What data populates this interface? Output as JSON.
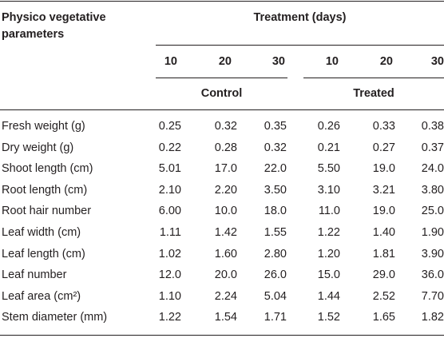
{
  "table": {
    "stub_header": "Physico vegetative parameters",
    "spanner": "Treatment (days)",
    "days": [
      "10",
      "20",
      "30",
      "10",
      "20",
      "30"
    ],
    "groups": [
      "Control",
      "Treated"
    ],
    "rows": [
      [
        "Fresh weight (g)",
        "0.25",
        "0.32",
        "0.35",
        "0.26",
        "0.33",
        "0.38"
      ],
      [
        "Dry weight (g)",
        "0.22",
        "0.28",
        "0.32",
        "0.21",
        "0.27",
        "0.37"
      ],
      [
        "Shoot length (cm)",
        "5.01",
        "17.0",
        "22.0",
        "5.50",
        "19.0",
        "24.0"
      ],
      [
        "Root length (cm)",
        "2.10",
        "2.20",
        "3.50",
        "3.10",
        "3.21",
        "3.80"
      ],
      [
        "Root hair number",
        "6.00",
        "10.0",
        "18.0",
        "11.0",
        "19.0",
        "25.0"
      ],
      [
        "Leaf width (cm)",
        "1.11",
        "1.42",
        "1.55",
        "1.22",
        "1.40",
        "1.90"
      ],
      [
        "Leaf length (cm)",
        "1.02",
        "1.60",
        "2.80",
        "1.20",
        "1.81",
        "3.90"
      ],
      [
        "Leaf number",
        "12.0",
        "20.0",
        "26.0",
        "15.0",
        "29.0",
        "36.0"
      ],
      [
        "Leaf area (cm²)",
        "1.10",
        "2.24",
        "5.04",
        "1.44",
        "2.52",
        "7.70"
      ],
      [
        "Stem diameter (mm)",
        "1.22",
        "1.54",
        "1.71",
        "1.52",
        "1.65",
        "1.82"
      ]
    ]
  }
}
